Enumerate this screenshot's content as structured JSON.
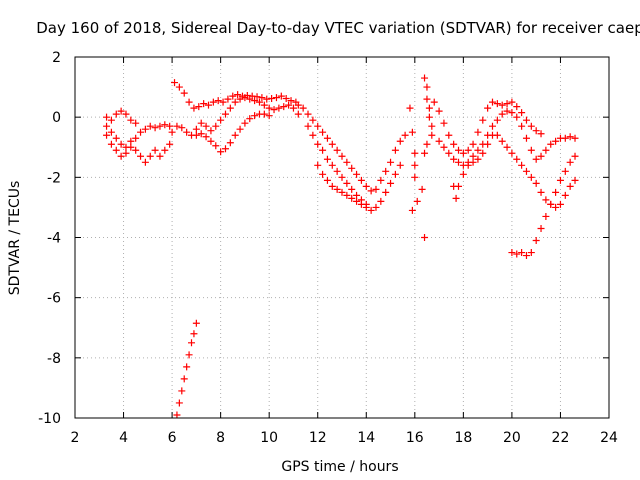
{
  "chart_data": {
    "type": "scatter",
    "title": "Day 160 of 2018, Sidereal Day-to-day VTEC variation (SDTVAR) for receiver caep",
    "xlabel": "GPS time / hours",
    "ylabel": "SDTVAR / TECUs",
    "xlim": [
      2,
      24
    ],
    "ylim": [
      -10,
      2
    ],
    "xticks": [
      2,
      4,
      6,
      8,
      10,
      12,
      14,
      16,
      18,
      20,
      22,
      24
    ],
    "yticks": [
      -10,
      -8,
      -6,
      -4,
      -2,
      0,
      2
    ],
    "xtick_labels": [
      "2",
      "4",
      "6",
      "8",
      "10",
      "12",
      "14",
      "16",
      "18",
      "20",
      "22",
      "24"
    ],
    "ytick_labels": [
      "-10",
      "-8",
      "-6",
      "-4",
      "-2",
      "0",
      "2"
    ],
    "grid": true,
    "marker": "+",
    "series": [
      {
        "name": "SDTVAR",
        "color": "#ff0000",
        "points": [
          [
            3.3,
            -0.3
          ],
          [
            3.5,
            -0.5
          ],
          [
            3.7,
            -0.7
          ],
          [
            3.9,
            -0.9
          ],
          [
            4.1,
            -1.0
          ],
          [
            4.3,
            -0.8
          ],
          [
            4.5,
            -0.7
          ],
          [
            4.7,
            -0.5
          ],
          [
            4.9,
            -0.4
          ],
          [
            5.1,
            -0.3
          ],
          [
            5.3,
            -0.35
          ],
          [
            5.5,
            -0.3
          ],
          [
            5.7,
            -0.25
          ],
          [
            5.9,
            -0.3
          ],
          [
            3.3,
            0.0
          ],
          [
            3.5,
            -0.1
          ],
          [
            3.7,
            0.1
          ],
          [
            3.9,
            0.2
          ],
          [
            4.1,
            0.1
          ],
          [
            4.3,
            -0.1
          ],
          [
            4.5,
            -0.2
          ],
          [
            3.3,
            -0.6
          ],
          [
            3.5,
            -0.9
          ],
          [
            3.7,
            -1.1
          ],
          [
            3.9,
            -1.3
          ],
          [
            4.1,
            -1.2
          ],
          [
            4.3,
            -1.0
          ],
          [
            4.5,
            -1.1
          ],
          [
            4.7,
            -1.3
          ],
          [
            4.9,
            -1.5
          ],
          [
            5.1,
            -1.3
          ],
          [
            5.3,
            -1.1
          ],
          [
            5.5,
            -1.3
          ],
          [
            5.7,
            -1.1
          ],
          [
            5.9,
            -0.9
          ],
          [
            6.0,
            -0.5
          ],
          [
            6.2,
            -0.3
          ],
          [
            6.4,
            -0.35
          ],
          [
            6.6,
            -0.5
          ],
          [
            6.8,
            -0.6
          ],
          [
            7.0,
            -0.4
          ],
          [
            7.2,
            -0.2
          ],
          [
            7.4,
            -0.3
          ],
          [
            7.6,
            -0.45
          ],
          [
            7.8,
            -0.3
          ],
          [
            8.0,
            -0.1
          ],
          [
            8.2,
            0.1
          ],
          [
            8.4,
            0.3
          ],
          [
            8.6,
            0.5
          ],
          [
            8.8,
            0.6
          ],
          [
            9.0,
            0.65
          ],
          [
            9.2,
            0.6
          ],
          [
            9.4,
            0.55
          ],
          [
            9.6,
            0.5
          ],
          [
            9.8,
            0.4
          ],
          [
            10.0,
            0.3
          ],
          [
            10.2,
            0.25
          ],
          [
            10.4,
            0.3
          ],
          [
            10.6,
            0.35
          ],
          [
            10.8,
            0.4
          ],
          [
            11.0,
            0.3
          ],
          [
            11.2,
            0.1
          ],
          [
            6.1,
            1.15
          ],
          [
            6.3,
            1.0
          ],
          [
            6.5,
            0.8
          ],
          [
            6.7,
            0.5
          ],
          [
            6.9,
            0.3
          ],
          [
            7.1,
            0.35
          ],
          [
            7.3,
            0.45
          ],
          [
            7.5,
            0.4
          ],
          [
            7.7,
            0.5
          ],
          [
            7.9,
            0.55
          ],
          [
            8.1,
            0.5
          ],
          [
            8.3,
            0.6
          ],
          [
            8.5,
            0.7
          ],
          [
            8.7,
            0.75
          ],
          [
            8.9,
            0.7
          ],
          [
            9.1,
            0.72
          ],
          [
            9.3,
            0.7
          ],
          [
            9.5,
            0.68
          ],
          [
            9.7,
            0.65
          ],
          [
            9.9,
            0.6
          ],
          [
            10.1,
            0.62
          ],
          [
            10.3,
            0.65
          ],
          [
            10.5,
            0.7
          ],
          [
            10.7,
            0.62
          ],
          [
            10.9,
            0.55
          ],
          [
            11.1,
            0.5
          ],
          [
            7.0,
            -0.6
          ],
          [
            7.2,
            -0.55
          ],
          [
            7.4,
            -0.65
          ],
          [
            7.6,
            -0.8
          ],
          [
            7.8,
            -0.95
          ],
          [
            8.0,
            -1.15
          ],
          [
            8.2,
            -1.05
          ],
          [
            8.4,
            -0.85
          ],
          [
            8.6,
            -0.6
          ],
          [
            8.8,
            -0.4
          ],
          [
            9.0,
            -0.2
          ],
          [
            9.2,
            -0.05
          ],
          [
            9.4,
            0.05
          ],
          [
            9.6,
            0.1
          ],
          [
            9.8,
            0.1
          ],
          [
            10.0,
            0.05
          ],
          [
            11.2,
            0.4
          ],
          [
            11.4,
            0.3
          ],
          [
            11.6,
            0.1
          ],
          [
            11.8,
            -0.1
          ],
          [
            12.0,
            -0.3
          ],
          [
            12.2,
            -0.5
          ],
          [
            12.4,
            -0.7
          ],
          [
            12.6,
            -0.9
          ],
          [
            12.8,
            -1.1
          ],
          [
            13.0,
            -1.3
          ],
          [
            13.2,
            -1.5
          ],
          [
            13.4,
            -1.7
          ],
          [
            13.6,
            -1.9
          ],
          [
            13.8,
            -2.1
          ],
          [
            14.0,
            -2.3
          ],
          [
            14.2,
            -2.45
          ],
          [
            14.4,
            -2.4
          ],
          [
            14.6,
            -2.1
          ],
          [
            14.8,
            -1.8
          ],
          [
            15.0,
            -1.5
          ],
          [
            15.2,
            -1.1
          ],
          [
            15.4,
            -0.8
          ],
          [
            15.6,
            -0.6
          ],
          [
            11.6,
            -0.3
          ],
          [
            11.8,
            -0.6
          ],
          [
            12.0,
            -0.9
          ],
          [
            12.2,
            -1.1
          ],
          [
            12.4,
            -1.4
          ],
          [
            12.6,
            -1.6
          ],
          [
            12.8,
            -1.8
          ],
          [
            13.0,
            -2.0
          ],
          [
            13.2,
            -2.2
          ],
          [
            13.4,
            -2.4
          ],
          [
            13.6,
            -2.6
          ],
          [
            13.8,
            -2.75
          ],
          [
            14.0,
            -2.9
          ],
          [
            14.2,
            -3.1
          ],
          [
            14.4,
            -3.0
          ],
          [
            14.6,
            -2.8
          ],
          [
            14.8,
            -2.5
          ],
          [
            15.0,
            -2.2
          ],
          [
            15.2,
            -1.9
          ],
          [
            15.4,
            -1.6
          ],
          [
            12.0,
            -1.6
          ],
          [
            12.2,
            -1.9
          ],
          [
            12.4,
            -2.1
          ],
          [
            12.6,
            -2.3
          ],
          [
            12.8,
            -2.4
          ],
          [
            13.0,
            -2.5
          ],
          [
            13.2,
            -2.6
          ],
          [
            13.4,
            -2.7
          ],
          [
            13.6,
            -2.8
          ],
          [
            13.8,
            -2.9
          ],
          [
            14.0,
            -3.0
          ],
          [
            15.8,
            0.3
          ],
          [
            15.9,
            -0.5
          ],
          [
            16.0,
            -1.2
          ],
          [
            16.0,
            -2.0
          ],
          [
            16.1,
            -2.8
          ],
          [
            15.9,
            -3.1
          ],
          [
            16.0,
            -1.6
          ],
          [
            16.3,
            -2.4
          ],
          [
            16.4,
            -4.0
          ],
          [
            16.4,
            1.3
          ],
          [
            16.5,
            1.0
          ],
          [
            16.5,
            0.6
          ],
          [
            16.6,
            0.3
          ],
          [
            16.6,
            0.0
          ],
          [
            16.7,
            -0.3
          ],
          [
            16.7,
            -0.6
          ],
          [
            16.5,
            -0.9
          ],
          [
            16.4,
            -1.2
          ],
          [
            16.8,
            0.5
          ],
          [
            17.0,
            0.2
          ],
          [
            17.2,
            -0.2
          ],
          [
            17.4,
            -0.6
          ],
          [
            17.6,
            -0.9
          ],
          [
            17.8,
            -1.1
          ],
          [
            18.0,
            -1.2
          ],
          [
            18.2,
            -1.1
          ],
          [
            18.4,
            -0.9
          ],
          [
            18.6,
            -0.5
          ],
          [
            18.8,
            -0.1
          ],
          [
            19.0,
            0.3
          ],
          [
            19.2,
            0.5
          ],
          [
            19.4,
            0.45
          ],
          [
            19.6,
            0.4
          ],
          [
            19.8,
            0.45
          ],
          [
            20.0,
            0.5
          ],
          [
            20.2,
            0.35
          ],
          [
            20.4,
            0.15
          ],
          [
            20.6,
            -0.1
          ],
          [
            20.8,
            -0.3
          ],
          [
            21.0,
            -0.45
          ],
          [
            21.2,
            -0.55
          ],
          [
            17.0,
            -0.8
          ],
          [
            17.2,
            -1.0
          ],
          [
            17.4,
            -1.2
          ],
          [
            17.6,
            -1.4
          ],
          [
            17.8,
            -1.5
          ],
          [
            18.0,
            -1.6
          ],
          [
            18.2,
            -1.5
          ],
          [
            18.4,
            -1.3
          ],
          [
            18.6,
            -1.1
          ],
          [
            18.8,
            -0.9
          ],
          [
            19.0,
            -0.6
          ],
          [
            19.2,
            -0.3
          ],
          [
            19.4,
            -0.1
          ],
          [
            19.6,
            0.1
          ],
          [
            19.8,
            0.2
          ],
          [
            20.0,
            0.15
          ],
          [
            20.2,
            0.0
          ],
          [
            20.4,
            -0.3
          ],
          [
            20.6,
            -0.7
          ],
          [
            20.8,
            -1.1
          ],
          [
            21.0,
            -1.4
          ],
          [
            21.2,
            -1.3
          ],
          [
            21.4,
            -1.1
          ],
          [
            21.6,
            -0.9
          ],
          [
            21.8,
            -0.8
          ],
          [
            22.0,
            -0.7
          ],
          [
            22.2,
            -0.7
          ],
          [
            22.4,
            -0.65
          ],
          [
            22.6,
            -0.7
          ],
          [
            17.6,
            -2.3
          ],
          [
            17.7,
            -2.7
          ],
          [
            17.8,
            -2.3
          ],
          [
            18.0,
            -1.9
          ],
          [
            18.2,
            -1.6
          ],
          [
            18.4,
            -1.5
          ],
          [
            18.6,
            -1.4
          ],
          [
            18.8,
            -1.2
          ],
          [
            19.0,
            -0.9
          ],
          [
            19.2,
            -0.6
          ],
          [
            19.4,
            -0.6
          ],
          [
            19.6,
            -0.8
          ],
          [
            19.8,
            -1.0
          ],
          [
            20.0,
            -1.2
          ],
          [
            20.2,
            -1.4
          ],
          [
            20.4,
            -1.6
          ],
          [
            20.6,
            -1.8
          ],
          [
            20.8,
            -2.0
          ],
          [
            21.0,
            -2.2
          ],
          [
            21.2,
            -2.5
          ],
          [
            21.4,
            -2.75
          ],
          [
            21.6,
            -2.9
          ],
          [
            21.8,
            -3.0
          ],
          [
            22.0,
            -2.9
          ],
          [
            22.2,
            -2.6
          ],
          [
            22.4,
            -2.3
          ],
          [
            22.6,
            -2.1
          ],
          [
            20.0,
            -4.5
          ],
          [
            20.2,
            -4.55
          ],
          [
            20.4,
            -4.5
          ],
          [
            20.6,
            -4.6
          ],
          [
            20.8,
            -4.5
          ],
          [
            21.0,
            -4.1
          ],
          [
            21.2,
            -3.7
          ],
          [
            21.4,
            -3.3
          ],
          [
            21.6,
            -2.9
          ],
          [
            21.8,
            -2.5
          ],
          [
            22.0,
            -2.1
          ],
          [
            22.2,
            -1.8
          ],
          [
            22.4,
            -1.5
          ],
          [
            22.6,
            -1.3
          ],
          [
            6.2,
            -9.9
          ],
          [
            6.3,
            -9.5
          ],
          [
            6.4,
            -9.1
          ],
          [
            6.5,
            -8.7
          ],
          [
            6.6,
            -8.3
          ],
          [
            6.7,
            -7.9
          ],
          [
            6.8,
            -7.5
          ],
          [
            6.9,
            -7.2
          ],
          [
            7.0,
            -6.85
          ]
        ]
      }
    ]
  }
}
